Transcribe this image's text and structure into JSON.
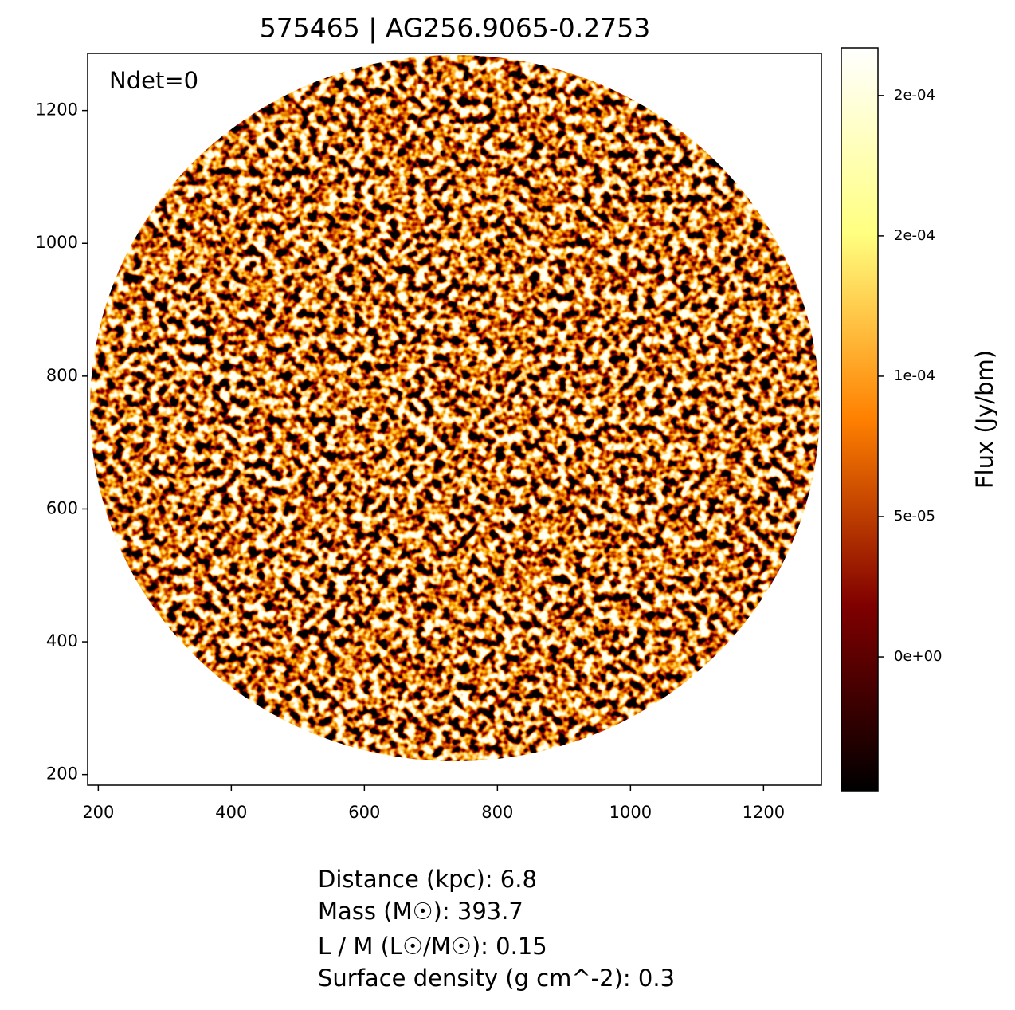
{
  "chart_data": {
    "type": "image",
    "title": "575465 | AG256.9065-0.2753",
    "annotation": "Ndet=0",
    "xlim": [
      184,
      1287
    ],
    "xticks": [
      200,
      400,
      600,
      800,
      1000,
      1200
    ],
    "ylim": [
      184,
      1286
    ],
    "yticks": [
      200,
      400,
      600,
      800,
      1000,
      1200
    ],
    "colormap": "afmhot",
    "colorbar": {
      "label": "Flux (Jy/bm)",
      "lim": [
        -4.77e-05,
        0.000217
      ],
      "ticks": [
        {
          "value": 0,
          "label": "0e+00"
        },
        {
          "value": 5e-05,
          "label": "5e-05"
        },
        {
          "value": 0.0001,
          "label": "1e-04"
        },
        {
          "value": 0.00015,
          "label": "2e-04"
        },
        {
          "value": 0.0002,
          "label": "2e-04"
        }
      ]
    },
    "info": [
      "Distance (kpc): 6.8",
      "Mass (M☉): 393.7",
      "L / M (L☉/M☉): 0.15",
      "Surface density (g cm^-2): 0.3"
    ]
  }
}
